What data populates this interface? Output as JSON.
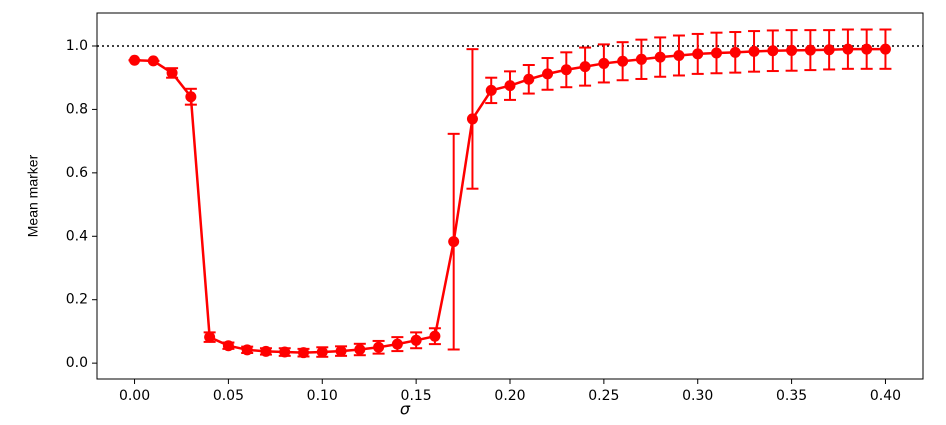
{
  "chart_data": {
    "type": "errorbar-line",
    "x_label": "σ",
    "y_label": "Mean marker",
    "x": [
      0,
      0.01,
      0.02,
      0.03,
      0.04,
      0.05,
      0.06,
      0.07,
      0.08,
      0.09,
      0.1,
      0.11,
      0.12,
      0.13,
      0.14,
      0.15,
      0.16,
      0.17,
      0.18,
      0.19,
      0.2,
      0.21,
      0.22,
      0.23,
      0.24,
      0.25,
      0.26,
      0.27,
      0.28,
      0.29,
      0.3,
      0.31,
      0.32,
      0.33,
      0.34,
      0.35,
      0.36,
      0.37,
      0.38,
      0.39,
      0.4
    ],
    "series": [
      {
        "color": "#ff0000",
        "values": [
          0.955,
          0.953,
          0.915,
          0.84,
          0.082,
          0.055,
          0.042,
          0.037,
          0.035,
          0.033,
          0.035,
          0.038,
          0.043,
          0.05,
          0.06,
          0.072,
          0.085,
          0.383,
          0.77,
          0.86,
          0.875,
          0.895,
          0.912,
          0.925,
          0.935,
          0.945,
          0.952,
          0.958,
          0.965,
          0.97,
          0.975,
          0.978,
          0.98,
          0.983,
          0.985,
          0.986,
          0.987,
          0.988,
          0.99,
          0.99,
          0.99
        ],
        "errors": [
          0,
          0,
          0.015,
          0.025,
          0.015,
          0.01,
          0.01,
          0.01,
          0.012,
          0.012,
          0.015,
          0.015,
          0.018,
          0.02,
          0.022,
          0.025,
          0.025,
          0.34,
          0.22,
          0.04,
          0.045,
          0.045,
          0.05,
          0.055,
          0.06,
          0.06,
          0.06,
          0.062,
          0.062,
          0.063,
          0.063,
          0.064,
          0.064,
          0.064,
          0.064,
          0.064,
          0.063,
          0.062,
          0.062,
          0.062,
          0.062
        ]
      }
    ],
    "xlim": [
      -0.02,
      0.42
    ],
    "ylim": [
      -0.05,
      1.104
    ],
    "xticks": [
      {
        "value": 0,
        "label": "0.00"
      },
      {
        "value": 0.05,
        "label": "0.05"
      },
      {
        "value": 0.1,
        "label": "0.10"
      },
      {
        "value": 0.15,
        "label": "0.15"
      },
      {
        "value": 0.2,
        "label": "0.20"
      },
      {
        "value": 0.25,
        "label": "0.25"
      },
      {
        "value": 0.3,
        "label": "0.30"
      },
      {
        "value": 0.35,
        "label": "0.35"
      },
      {
        "value": 0.4,
        "label": "0.40"
      }
    ],
    "yticks": [
      {
        "value": 0,
        "label": "0.0"
      },
      0.2,
      0.4,
      0.6,
      0.8,
      {
        "value": 1,
        "label": "1.0"
      }
    ],
    "hline": 1,
    "grid": false
  }
}
